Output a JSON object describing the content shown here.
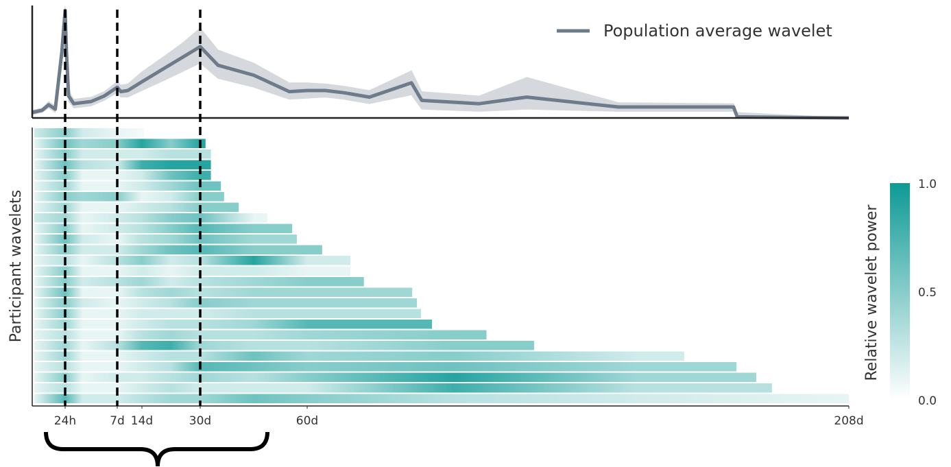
{
  "chart_data": [
    {
      "type": "line",
      "xlim": [
        0,
        208
      ],
      "ylim": [
        0,
        1
      ],
      "x": [
        0,
        0.3,
        0.5,
        0.7,
        0.9,
        1,
        1.15,
        1.4,
        2,
        4,
        5.5,
        7,
        8,
        10,
        14,
        20,
        25,
        30,
        35,
        45,
        55,
        60,
        65,
        70,
        77,
        88.5,
        91.3,
        107,
        120,
        145,
        176.5,
        177.5,
        208
      ],
      "series": [
        {
          "name": "Population average wavelet",
          "color": "#6e7b8b",
          "values": [
            0.05,
            0.07,
            0.12,
            0.08,
            0.6,
            0.98,
            0.6,
            0.2,
            0.13,
            0.15,
            0.2,
            0.28,
            0.24,
            0.25,
            0.33,
            0.45,
            0.55,
            0.65,
            0.48,
            0.39,
            0.24,
            0.25,
            0.25,
            0.23,
            0.19,
            0.32,
            0.16,
            0.13,
            0.19,
            0.1,
            0.1,
            0.01,
            0
          ]
        }
      ],
      "band_color": "#d5d9dd",
      "band_high": [
        0.07,
        0.09,
        0.15,
        0.11,
        0.65,
        1.02,
        0.66,
        0.25,
        0.17,
        0.19,
        0.24,
        0.33,
        0.3,
        0.31,
        0.42,
        0.56,
        0.68,
        0.82,
        0.62,
        0.5,
        0.32,
        0.32,
        0.31,
        0.29,
        0.25,
        0.43,
        0.24,
        0.2,
        0.37,
        0.14,
        0.13,
        0.05,
        0
      ],
      "band_low": [
        0.03,
        0.05,
        0.09,
        0.05,
        0.55,
        0.93,
        0.54,
        0.15,
        0.09,
        0.11,
        0.16,
        0.23,
        0.19,
        0.19,
        0.25,
        0.34,
        0.42,
        0.5,
        0.36,
        0.28,
        0.17,
        0.18,
        0.19,
        0.17,
        0.13,
        0.21,
        0.08,
        0.06,
        0.08,
        0.06,
        0.06,
        0,
        0
      ]
    },
    {
      "type": "heatmap",
      "ylabel": "Participant wavelets",
      "xlim": [
        0,
        208
      ],
      "xticks": [
        {
          "value": 1,
          "label": "24h"
        },
        {
          "value": 7,
          "label": "7d"
        },
        {
          "value": 14,
          "label": "14d"
        },
        {
          "value": 30,
          "label": "30d"
        },
        {
          "value": 60,
          "label": "60d"
        },
        {
          "value": 208,
          "label": "208d"
        }
      ],
      "vlines": [
        1,
        7,
        30
      ],
      "x": [
        0,
        1,
        3,
        7,
        14,
        22,
        30,
        45,
        60,
        100,
        150,
        208
      ],
      "row_ends": [
        14.6,
        31.5,
        33,
        33,
        33,
        35.8,
        36.7,
        40.8,
        48.8,
        55.8,
        57.1,
        64.1,
        71.8,
        71.8,
        75.5,
        88.7,
        90,
        91.1,
        94.1,
        109,
        122,
        163,
        177.3,
        182.7,
        187,
        208
      ],
      "rows": [
        [
          0.2,
          0.5,
          0.2,
          0.1,
          0.05,
          null,
          null,
          null,
          null,
          null,
          null,
          null
        ],
        [
          0.1,
          0.6,
          0.4,
          0.5,
          0.9,
          0.5,
          0.9,
          null,
          null,
          null,
          null,
          null
        ],
        [
          0.1,
          0.5,
          0.2,
          0.2,
          0.2,
          0.3,
          0.3,
          null,
          null,
          null,
          null,
          null
        ],
        [
          0.1,
          0.6,
          0.3,
          0.2,
          0.8,
          0.9,
          0.9,
          null,
          null,
          null,
          null,
          null
        ],
        [
          0.1,
          0.5,
          0.1,
          0.1,
          0.2,
          0.6,
          0.8,
          null,
          null,
          null,
          null,
          null
        ],
        [
          0.1,
          0.4,
          0.1,
          0.1,
          0.2,
          0.4,
          0.6,
          null,
          null,
          null,
          null,
          null
        ],
        [
          0.1,
          0.5,
          0.4,
          0.5,
          0.1,
          0.2,
          0.5,
          null,
          null,
          null,
          null,
          null
        ],
        [
          0.1,
          0.4,
          0.1,
          0.1,
          0.2,
          0.3,
          0.5,
          null,
          null,
          null,
          null,
          null
        ],
        [
          0.2,
          0.4,
          0.1,
          0.2,
          0.3,
          0.5,
          0.6,
          0.1,
          null,
          null,
          null,
          null
        ],
        [
          0.1,
          0.5,
          0.1,
          0.2,
          0.3,
          0.5,
          0.7,
          0.5,
          null,
          null,
          null,
          null
        ],
        [
          0.1,
          0.6,
          0.2,
          0.1,
          0.3,
          0.4,
          0.6,
          0.4,
          null,
          null,
          null,
          null
        ],
        [
          0.1,
          0.5,
          0.2,
          0.2,
          0.4,
          0.6,
          0.7,
          0.5,
          0.5,
          null,
          null,
          null
        ],
        [
          0.1,
          0.3,
          0.1,
          0.3,
          0.5,
          0.2,
          0.3,
          0.9,
          0.2,
          null,
          null,
          null
        ],
        [
          0.1,
          0.5,
          0.1,
          0.1,
          0.2,
          0.1,
          0.2,
          0.2,
          0.1,
          null,
          null,
          null
        ],
        [
          0.1,
          0.5,
          0.2,
          0.3,
          0.4,
          0.2,
          0.3,
          0.4,
          0.5,
          null,
          null,
          null
        ],
        [
          0.1,
          0.6,
          0.1,
          0.1,
          0.3,
          0.4,
          0.3,
          0.4,
          0.4,
          null,
          null,
          null
        ],
        [
          0.1,
          0.5,
          0.2,
          0.1,
          0.2,
          0.3,
          0.5,
          0.4,
          0.4,
          null,
          null,
          null
        ],
        [
          0.1,
          0.5,
          0.1,
          0.1,
          0.2,
          0.2,
          0.2,
          0.3,
          0.3,
          null,
          null,
          null
        ],
        [
          0.1,
          0.4,
          0.1,
          0.1,
          0.2,
          0.3,
          0.3,
          0.4,
          0.7,
          null,
          null,
          null
        ],
        [
          0.1,
          0.3,
          0.1,
          0.1,
          0.3,
          0.4,
          0.3,
          0.3,
          0.4,
          0.5,
          null,
          null
        ],
        [
          0.1,
          0.4,
          0.1,
          0.3,
          0.7,
          0.8,
          0.4,
          0.3,
          0.3,
          0.5,
          null,
          null
        ],
        [
          0.1,
          0.4,
          0.1,
          0.1,
          0.2,
          0.3,
          0.3,
          0.6,
          0.4,
          0.5,
          0.2,
          null
        ],
        [
          0.1,
          0.3,
          0.1,
          0.1,
          0.2,
          0.3,
          0.7,
          0.6,
          0.5,
          0.6,
          0.4,
          null
        ],
        [
          0.1,
          0.5,
          0.1,
          0.2,
          0.2,
          0.3,
          0.4,
          0.3,
          0.5,
          0.9,
          0.4,
          null
        ],
        [
          0.1,
          0.3,
          0.1,
          0.1,
          0.2,
          0.3,
          0.2,
          0.2,
          0.2,
          0.8,
          0.3,
          null
        ],
        [
          0.1,
          0.7,
          0.2,
          0.2,
          0.3,
          0.4,
          0.4,
          0.6,
          0.5,
          0.3,
          0.2,
          0.1
        ]
      ],
      "colorbar": {
        "label": "Relative wavelet power",
        "lim": [
          0,
          1
        ],
        "ticks": [
          {
            "value": 0,
            "label": "0.0"
          },
          {
            "value": 0.5,
            "label": "0.5"
          },
          {
            "value": 1,
            "label": "1.0"
          }
        ],
        "colors": [
          "#ffffff",
          "#0e9a95"
        ]
      }
    }
  ]
}
